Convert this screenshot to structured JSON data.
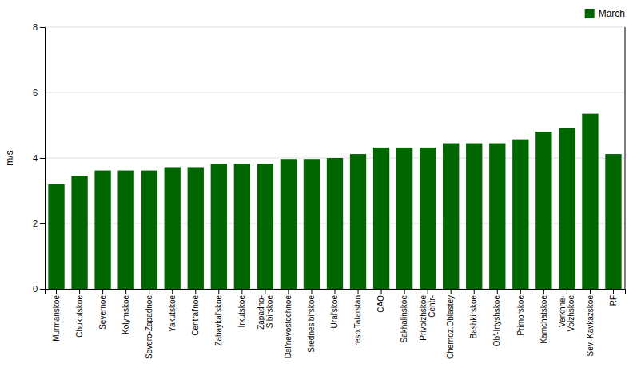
{
  "chart_data": {
    "type": "bar",
    "categories": [
      "Murmanskoe",
      "Chukotskoe",
      "Severnoe",
      "Kolymskoe",
      "Severo-Zapadnoe",
      "Yakutskoe",
      "Central'noe",
      "Zabaykal'skoe",
      "Irkutskoe",
      "Zapadno-\nSibirskoe",
      "Dal'nevostochnoe",
      "Srednesibirskoe",
      "Ural'skoe",
      "resp.Tatarstan",
      "CAO",
      "Sakhalinskoe",
      "Privolzhskoe\nCentr-",
      "Chernoz.Oblastey",
      "Bashkirskoe",
      "Ob'-Irtyshskoe",
      "Primorskoe",
      "Kamchatskoe",
      "Verkhne-\nVolzhskoe",
      "Sev.-Kavkazskoe",
      "RF"
    ],
    "series": [
      {
        "name": "March",
        "color": "#006600",
        "values": [
          3.2,
          3.45,
          3.62,
          3.62,
          3.62,
          3.72,
          3.72,
          3.82,
          3.82,
          3.82,
          3.97,
          3.97,
          4.0,
          4.12,
          4.32,
          4.32,
          4.32,
          4.45,
          4.45,
          4.45,
          4.57,
          4.8,
          4.92,
          5.35,
          4.12
        ]
      }
    ],
    "ylabel": "m/s",
    "ylim": [
      0,
      8
    ],
    "yticks": [
      0,
      2,
      4,
      6,
      8
    ],
    "grid": true,
    "legend": "upper right"
  }
}
